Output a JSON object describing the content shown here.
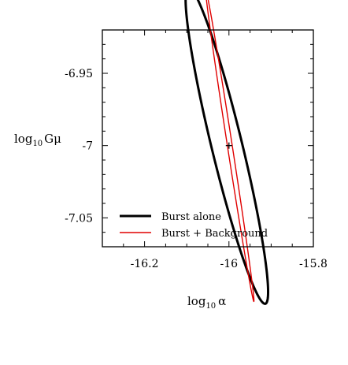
{
  "chart_data": {
    "type": "contour",
    "title": "",
    "xlabel": {
      "base": "log",
      "sub": "10",
      "symbol": "α"
    },
    "ylabel": {
      "base": "log",
      "sub": "10",
      "symbol": "Gμ"
    },
    "xlim": [
      -16.3,
      -15.8
    ],
    "ylim": [
      -7.07,
      -6.92
    ],
    "xticks": [
      {
        "value": -16.2,
        "label": "-16.2"
      },
      {
        "value": -16.0,
        "label": "-16"
      },
      {
        "value": -15.8,
        "label": "-15.8"
      }
    ],
    "yticks": [
      {
        "value": -6.95,
        "label": "-6.95"
      },
      {
        "value": -7.0,
        "label": "-7"
      },
      {
        "value": -7.05,
        "label": "-7.05"
      }
    ],
    "marker": {
      "x": -16.0,
      "y": -7.0,
      "symbol": "+"
    },
    "series": [
      {
        "name": "Burst alone",
        "color": "#000000",
        "style": "thick",
        "ellipse": {
          "cx": -16.005,
          "cy": -7.0,
          "a": 0.144,
          "b": 0.0284,
          "tilt_deg": -48.5
        }
      },
      {
        "name": "Burst + Background",
        "color": "#e00000",
        "style": "thin",
        "ellipse": {
          "cx": -15.998,
          "cy": -7.0,
          "a": 0.122,
          "b": 0.0051,
          "tilt_deg": -62.1
        }
      }
    ],
    "legend": {
      "placement": "bottom-left"
    },
    "grid": false
  }
}
